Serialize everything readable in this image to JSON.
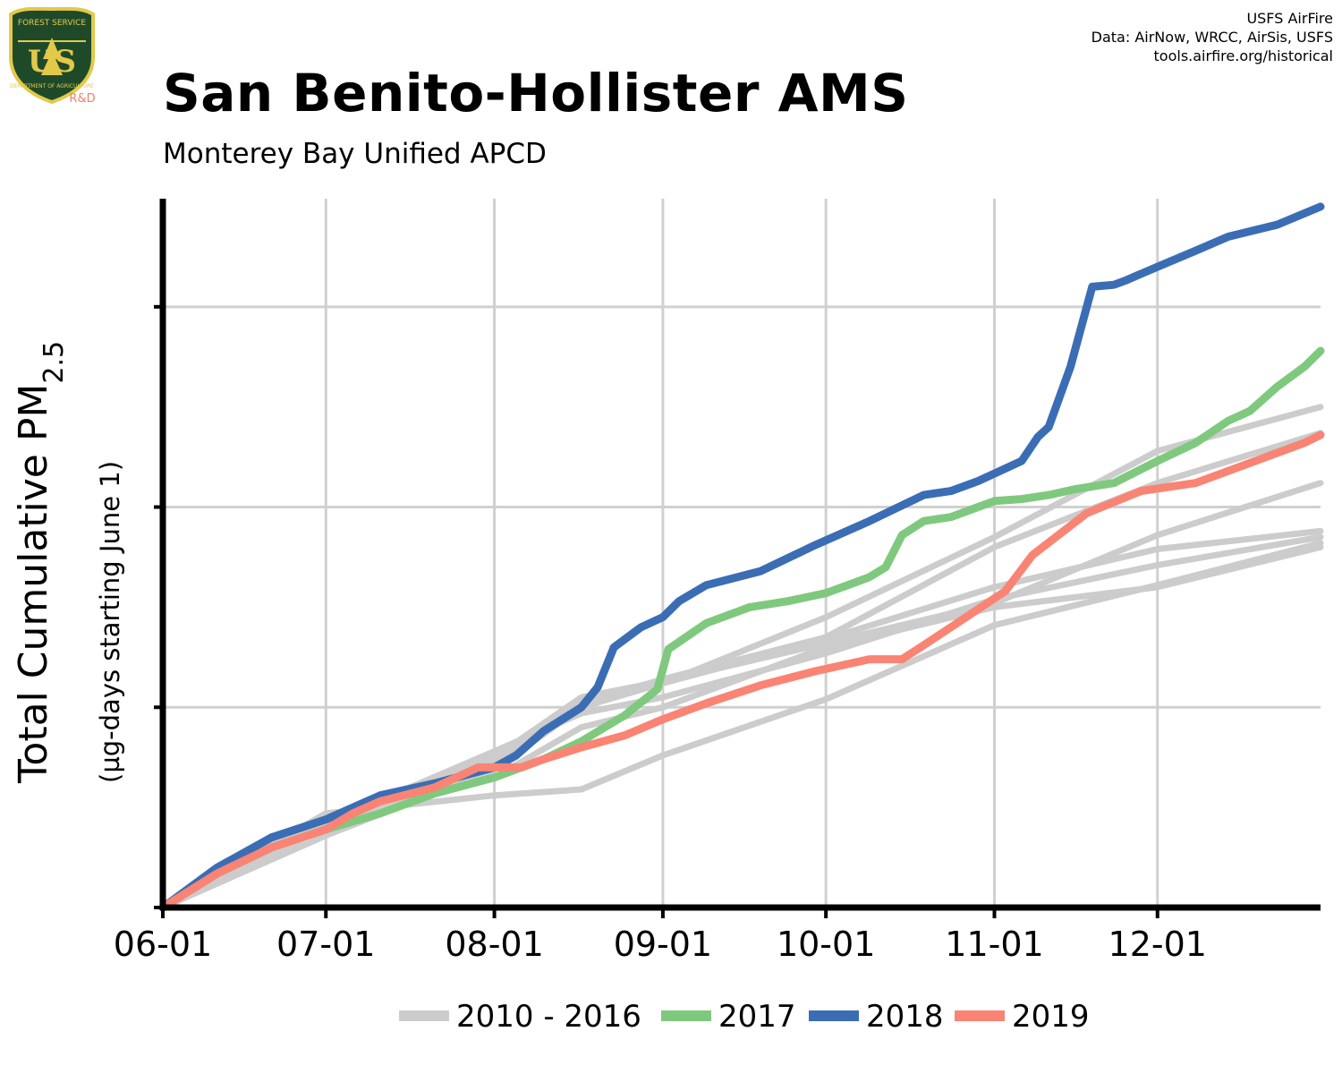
{
  "logo": {
    "icon": "usfs-shield-icon",
    "text_top": "FOREST SERVICE",
    "text_main": "US",
    "text_bottom": "DEPARTMENT OF AGRICULTURE",
    "sublabel": "R&D"
  },
  "credits": [
    "USFS AirFire",
    "Data: AirNow, WRCC, AirSis, USFS",
    "tools.airfire.org/historical"
  ],
  "chart_data": {
    "type": "line",
    "title": "San Benito-Hollister AMS",
    "subtitle": "Monterey Bay Unified APCD",
    "ylabel": {
      "main": "Total Cumulative PM",
      "sub": "2.5",
      "second_line": "(µg-days starting June 1)"
    },
    "xlabel": "",
    "x_ticks": [
      "06-01",
      "07-01",
      "08-01",
      "09-01",
      "10-01",
      "11-01",
      "12-01"
    ],
    "x_tick_days": [
      0,
      30,
      61,
      92,
      122,
      153,
      183
    ],
    "xlim": [
      0,
      213
    ],
    "ylim": [
      0,
      3540
    ],
    "y_tick_values": [
      0,
      1000,
      2000,
      3000
    ],
    "y_tick_labels_shown": false,
    "grid": true,
    "legend_position": "bottom",
    "colors": {
      "history": "#cccccc",
      "y2017": "#7fc97f",
      "y2018": "#3b6db5",
      "y2019": "#f98474",
      "grid": "#d0d0d0",
      "axis": "#000000"
    },
    "history": {
      "label": "2010 - 2016",
      "series": [
        {
          "x": [
            0,
            30,
            61,
            77,
            92,
            122,
            153,
            183,
            213
          ],
          "y": [
            0,
            420,
            780,
            970,
            1050,
            1270,
            1540,
            1710,
            1850
          ]
        },
        {
          "x": [
            0,
            30,
            61,
            77,
            92,
            122,
            153,
            183,
            213
          ],
          "y": [
            0,
            360,
            690,
            1020,
            1120,
            1340,
            1600,
            1790,
            1880
          ]
        },
        {
          "x": [
            0,
            30,
            61,
            77,
            92,
            122,
            153,
            183,
            213
          ],
          "y": [
            0,
            470,
            560,
            590,
            760,
            1040,
            1410,
            1610,
            1820
          ]
        },
        {
          "x": [
            0,
            30,
            61,
            77,
            92,
            122,
            153,
            183,
            213
          ],
          "y": [
            0,
            450,
            750,
            1050,
            1130,
            1320,
            1520,
            1860,
            2120
          ]
        },
        {
          "x": [
            0,
            30,
            61,
            77,
            92,
            122,
            153,
            183,
            213
          ],
          "y": [
            0,
            410,
            720,
            1020,
            1140,
            1350,
            1800,
            2120,
            2370
          ]
        },
        {
          "x": [
            0,
            30,
            61,
            77,
            92,
            122,
            153,
            183,
            213
          ],
          "y": [
            0,
            400,
            690,
            1000,
            1120,
            1450,
            1850,
            2280,
            2500
          ]
        },
        {
          "x": [
            0,
            30,
            61,
            77,
            92,
            122,
            153,
            183,
            213
          ],
          "y": [
            0,
            420,
            650,
            900,
            1000,
            1300,
            1500,
            1600,
            1800
          ]
        }
      ]
    },
    "series": [
      {
        "name": "2017",
        "x": [
          0,
          10,
          20,
          30,
          40,
          50,
          61,
          70,
          77,
          85,
          91,
          93,
          100,
          108,
          115,
          122,
          127,
          130,
          133,
          136,
          140,
          145,
          150,
          153,
          158,
          163,
          168,
          175,
          183,
          190,
          196,
          200,
          205,
          210,
          213
        ],
        "y": [
          0,
          170,
          300,
          390,
          470,
          570,
          650,
          740,
          830,
          960,
          1090,
          1290,
          1420,
          1500,
          1530,
          1570,
          1620,
          1650,
          1700,
          1860,
          1930,
          1950,
          2000,
          2030,
          2040,
          2060,
          2090,
          2120,
          2230,
          2320,
          2430,
          2480,
          2600,
          2700,
          2780
        ]
      },
      {
        "name": "2018",
        "x": [
          0,
          10,
          20,
          30,
          40,
          50,
          61,
          65,
          70,
          77,
          80,
          83,
          88,
          92,
          95,
          100,
          110,
          120,
          130,
          140,
          145,
          150,
          158,
          161,
          163,
          167,
          171,
          175,
          177,
          183,
          190,
          196,
          205,
          213
        ],
        "y": [
          0,
          200,
          350,
          440,
          560,
          620,
          700,
          760,
          880,
          1000,
          1100,
          1300,
          1400,
          1450,
          1530,
          1610,
          1680,
          1810,
          1930,
          2060,
          2080,
          2130,
          2230,
          2350,
          2400,
          2700,
          3100,
          3110,
          3130,
          3200,
          3280,
          3350,
          3410,
          3500
        ]
      },
      {
        "name": "2019",
        "x": [
          0,
          10,
          20,
          30,
          35,
          40,
          50,
          58,
          61,
          66,
          70,
          77,
          85,
          92,
          100,
          110,
          120,
          130,
          136,
          140,
          150,
          155,
          160,
          170,
          180,
          190,
          200,
          210,
          213
        ],
        "y": [
          0,
          170,
          300,
          390,
          470,
          530,
          600,
          700,
          700,
          700,
          740,
          800,
          860,
          940,
          1020,
          1110,
          1180,
          1240,
          1240,
          1310,
          1490,
          1580,
          1760,
          1970,
          2080,
          2120,
          2220,
          2320,
          2360
        ]
      }
    ],
    "legend": [
      {
        "key": "history",
        "label": "2010 - 2016"
      },
      {
        "key": "y2017",
        "label": "2017"
      },
      {
        "key": "y2018",
        "label": "2018"
      },
      {
        "key": "y2019",
        "label": "2019"
      }
    ]
  }
}
